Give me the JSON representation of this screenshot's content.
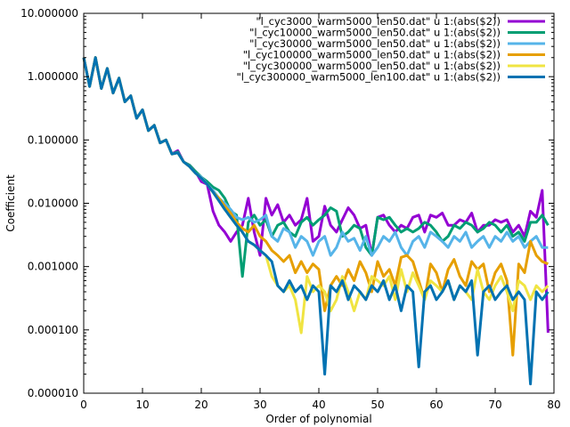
{
  "chart_data": {
    "type": "line",
    "title": "",
    "xlabel": "Order of polynomial",
    "ylabel": "Coefficient",
    "xlim": [
      0,
      80
    ],
    "ylim": [
      1e-05,
      10
    ],
    "yscale": "log",
    "x_ticks": [
      0,
      10,
      20,
      30,
      40,
      50,
      60,
      70,
      80
    ],
    "x_tick_labels": [
      "0",
      "10",
      "20",
      "30",
      "40",
      "50",
      "60",
      "70",
      "80"
    ],
    "y_ticks": [
      1e-05,
      0.0001,
      0.001,
      0.01,
      0.1,
      1,
      10
    ],
    "y_tick_labels": [
      "0.000010",
      "0.000100",
      "0.001000",
      "0.010000",
      "0.100000",
      "1.000000",
      "10.000000"
    ],
    "grid": false,
    "legend": "top-right",
    "series": [
      {
        "name": "\"l_cyc3000_warm5000_len50.dat\" u 1:(abs($2))",
        "color": "#9400d3",
        "values": [
          2.0,
          0.7,
          2.0,
          0.65,
          1.35,
          0.55,
          0.95,
          0.4,
          0.5,
          0.22,
          0.3,
          0.14,
          0.17,
          0.09,
          0.1,
          0.06,
          0.068,
          0.045,
          0.04,
          0.032,
          0.022,
          0.02,
          0.0075,
          0.0045,
          0.0035,
          0.0025,
          0.0035,
          0.0045,
          0.012,
          0.0035,
          0.0015,
          0.012,
          0.0065,
          0.0095,
          0.005,
          0.0065,
          0.0045,
          0.0055,
          0.012,
          0.0025,
          0.003,
          0.009,
          0.0045,
          0.0035,
          0.0055,
          0.0085,
          0.0065,
          0.004,
          0.0045,
          0.0015,
          0.006,
          0.0065,
          0.0045,
          0.0035,
          0.0045,
          0.004,
          0.006,
          0.0065,
          0.0035,
          0.0065,
          0.006,
          0.007,
          0.0045,
          0.0045,
          0.0055,
          0.005,
          0.007,
          0.0035,
          0.0045,
          0.0045,
          0.0055,
          0.005,
          0.0055,
          0.0035,
          0.0045,
          0.003,
          0.0075,
          0.006,
          0.016,
          9e-05
        ]
      },
      {
        "name": "\"l_cyc10000_warm5000_len50.dat\" u 1:(abs($2))",
        "color": "#009e73",
        "values": [
          2.0,
          0.7,
          2.0,
          0.65,
          1.35,
          0.55,
          0.95,
          0.4,
          0.5,
          0.22,
          0.3,
          0.14,
          0.17,
          0.09,
          0.1,
          0.06,
          0.065,
          0.045,
          0.04,
          0.032,
          0.026,
          0.022,
          0.018,
          0.016,
          0.012,
          0.0075,
          0.0065,
          0.0007,
          0.005,
          0.0065,
          0.0045,
          0.0055,
          0.003,
          0.0045,
          0.005,
          0.0035,
          0.003,
          0.005,
          0.006,
          0.0045,
          0.0055,
          0.0065,
          0.0085,
          0.0075,
          0.003,
          0.0035,
          0.0045,
          0.004,
          0.002,
          0.0015,
          0.006,
          0.0055,
          0.006,
          0.0045,
          0.0035,
          0.004,
          0.0035,
          0.004,
          0.005,
          0.0045,
          0.0035,
          0.0025,
          0.003,
          0.0045,
          0.004,
          0.005,
          0.0045,
          0.0035,
          0.004,
          0.005,
          0.0045,
          0.0035,
          0.0045,
          0.003,
          0.0035,
          0.0025,
          0.005,
          0.005,
          0.0065,
          0.0045
        ]
      },
      {
        "name": "\"l_cyc30000_warm5000_len50.dat\" u 1:(abs($2))",
        "color": "#56b4e9",
        "values": [
          2.0,
          0.7,
          2.0,
          0.65,
          1.35,
          0.55,
          0.95,
          0.4,
          0.5,
          0.22,
          0.3,
          0.14,
          0.17,
          0.09,
          0.1,
          0.06,
          0.063,
          0.045,
          0.038,
          0.03,
          0.026,
          0.02,
          0.016,
          0.012,
          0.01,
          0.008,
          0.006,
          0.0055,
          0.006,
          0.005,
          0.0055,
          0.0065,
          0.003,
          0.0025,
          0.004,
          0.0035,
          0.002,
          0.003,
          0.0025,
          0.0015,
          0.0025,
          0.003,
          0.0015,
          0.002,
          0.0035,
          0.0025,
          0.0028,
          0.0018,
          0.003,
          0.0015,
          0.002,
          0.003,
          0.0025,
          0.0035,
          0.002,
          0.0015,
          0.0025,
          0.003,
          0.002,
          0.0035,
          0.003,
          0.0025,
          0.002,
          0.003,
          0.0025,
          0.0035,
          0.002,
          0.0025,
          0.003,
          0.002,
          0.003,
          0.0025,
          0.0035,
          0.0025,
          0.003,
          0.002,
          0.0025,
          0.003,
          0.002,
          0.002
        ]
      },
      {
        "name": "\"l_cyc100000_warm5000_len50.dat\" u 1:(abs($2))",
        "color": "#e69f00",
        "values": [
          2.0,
          0.7,
          2.0,
          0.65,
          1.35,
          0.55,
          0.95,
          0.4,
          0.5,
          0.22,
          0.3,
          0.14,
          0.17,
          0.09,
          0.1,
          0.06,
          0.063,
          0.045,
          0.038,
          0.03,
          0.025,
          0.02,
          0.015,
          0.012,
          0.009,
          0.007,
          0.005,
          0.004,
          0.0035,
          0.0045,
          0.003,
          0.0025,
          0.0018,
          0.0015,
          0.0012,
          0.0015,
          0.0008,
          0.0012,
          0.0008,
          0.0011,
          0.0009,
          0.0002,
          0.0005,
          0.0007,
          0.0005,
          0.0009,
          0.0006,
          0.0012,
          0.0008,
          0.0004,
          0.0012,
          0.0007,
          0.0009,
          0.0005,
          0.0014,
          0.0015,
          0.0012,
          0.0006,
          0.0003,
          0.0011,
          0.0008,
          0.0004,
          0.0009,
          0.0013,
          0.0007,
          0.0005,
          0.0012,
          0.0009,
          0.0011,
          0.0004,
          0.0008,
          0.0011,
          0.0006,
          4e-05,
          0.0011,
          0.0008,
          0.0025,
          0.0015,
          0.0012,
          0.0011
        ]
      },
      {
        "name": "\"l_cyc300000_warm5000_len50.dat\" u 1:(abs($2))",
        "color": "#f0e442",
        "values": [
          2.0,
          0.7,
          2.0,
          0.65,
          1.35,
          0.55,
          0.95,
          0.4,
          0.5,
          0.22,
          0.3,
          0.14,
          0.17,
          0.09,
          0.1,
          0.06,
          0.063,
          0.045,
          0.038,
          0.03,
          0.025,
          0.02,
          0.015,
          0.011,
          0.008,
          0.006,
          0.0045,
          0.0035,
          0.0025,
          0.0022,
          0.0018,
          0.0015,
          0.0007,
          0.0005,
          0.0004,
          0.0005,
          0.0003,
          9e-05,
          0.0007,
          0.0004,
          0.0005,
          0.0004,
          0.0002,
          0.0003,
          0.0007,
          0.0004,
          0.0002,
          0.0004,
          0.0003,
          0.0007,
          0.0006,
          0.0005,
          0.0007,
          0.0003,
          0.0009,
          0.0004,
          0.0008,
          0.0005,
          0.0003,
          0.0006,
          0.0005,
          0.0004,
          0.0006,
          0.0003,
          0.0005,
          0.0004,
          0.0003,
          0.0009,
          0.0004,
          0.0003,
          0.0005,
          0.0007,
          0.0004,
          0.0002,
          0.0006,
          0.0005,
          0.0003,
          0.0005,
          0.0004,
          0.0005
        ]
      },
      {
        "name": "\"l_cyc300000_warm5000_len100.dat\" u 1:(abs($2))",
        "color": "#0072b2",
        "values": [
          2.0,
          0.7,
          2.0,
          0.65,
          1.35,
          0.55,
          0.95,
          0.4,
          0.5,
          0.22,
          0.3,
          0.14,
          0.17,
          0.09,
          0.1,
          0.06,
          0.063,
          0.045,
          0.038,
          0.03,
          0.025,
          0.02,
          0.015,
          0.011,
          0.008,
          0.006,
          0.0045,
          0.0035,
          0.0025,
          0.0022,
          0.0018,
          0.0015,
          0.0012,
          0.0005,
          0.0004,
          0.0006,
          0.0004,
          0.0005,
          0.0003,
          0.0005,
          0.0004,
          2e-05,
          0.0005,
          0.0004,
          0.0006,
          0.0003,
          0.0005,
          0.0004,
          0.0003,
          0.0005,
          0.0004,
          0.0006,
          0.0003,
          0.0005,
          0.0002,
          0.0005,
          0.0004,
          2.6e-05,
          0.0004,
          0.0005,
          0.0003,
          0.0004,
          0.0006,
          0.0003,
          0.0005,
          0.0004,
          0.0006,
          4e-05,
          0.0004,
          0.0005,
          0.0003,
          0.0004,
          0.0005,
          0.0003,
          0.0004,
          0.0003,
          1.4e-05,
          0.0004,
          0.0003,
          0.0004
        ]
      }
    ]
  }
}
